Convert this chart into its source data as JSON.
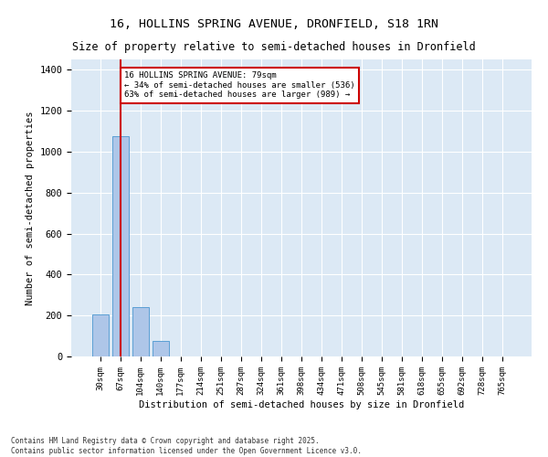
{
  "title1": "16, HOLLINS SPRING AVENUE, DRONFIELD, S18 1RN",
  "title2": "Size of property relative to semi-detached houses in Dronfield",
  "xlabel": "Distribution of semi-detached houses by size in Dronfield",
  "ylabel": "Number of semi-detached properties",
  "categories": [
    "30sqm",
    "67sqm",
    "104sqm",
    "140sqm",
    "177sqm",
    "214sqm",
    "251sqm",
    "287sqm",
    "324sqm",
    "361sqm",
    "398sqm",
    "434sqm",
    "471sqm",
    "508sqm",
    "545sqm",
    "581sqm",
    "618sqm",
    "655sqm",
    "692sqm",
    "728sqm",
    "765sqm"
  ],
  "values": [
    205,
    1075,
    240,
    75,
    0,
    0,
    0,
    0,
    0,
    0,
    0,
    0,
    0,
    0,
    0,
    0,
    0,
    0,
    0,
    0,
    0
  ],
  "bar_color": "#aec6e8",
  "bar_edge_color": "#5a9fd4",
  "bg_color": "#dce9f5",
  "grid_color": "#ffffff",
  "vline_x_index": 1,
  "vline_color": "#cc0000",
  "annotation_title": "16 HOLLINS SPRING AVENUE: 79sqm",
  "annotation_line1": "← 34% of semi-detached houses are smaller (536)",
  "annotation_line2": "63% of semi-detached houses are larger (989) →",
  "annotation_box_color": "#cc0000",
  "ylim": [
    0,
    1450
  ],
  "yticks": [
    0,
    200,
    400,
    600,
    800,
    1000,
    1200,
    1400
  ],
  "footnote1": "Contains HM Land Registry data © Crown copyright and database right 2025.",
  "footnote2": "Contains public sector information licensed under the Open Government Licence v3.0."
}
